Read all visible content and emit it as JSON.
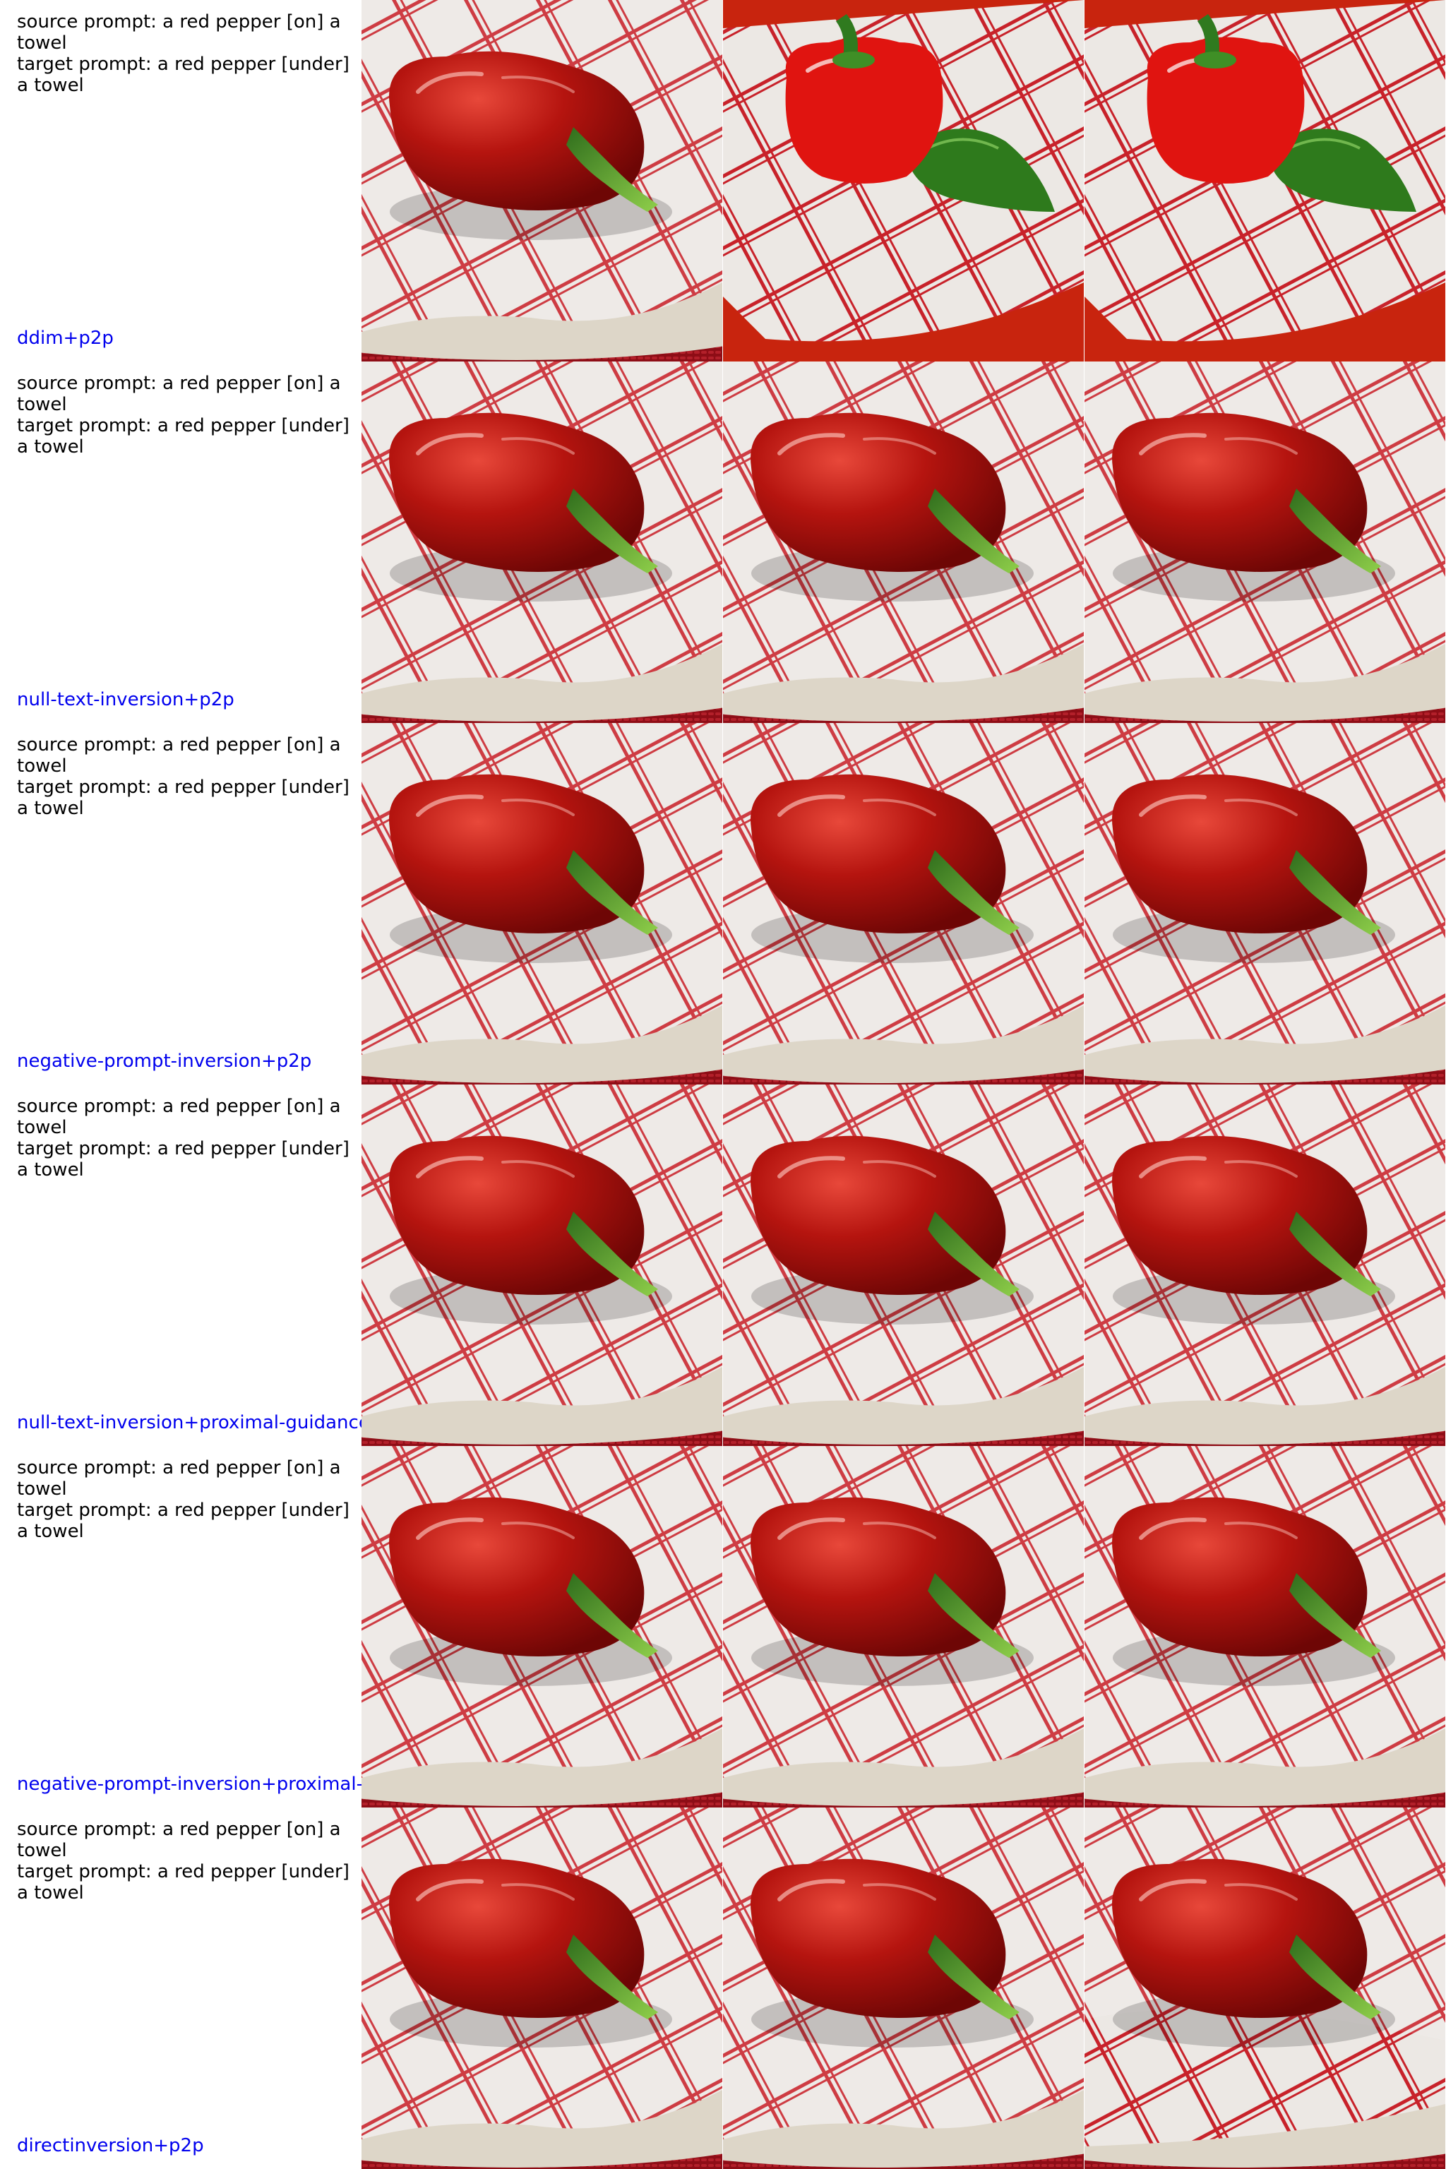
{
  "colors": {
    "method_label": "#0000ee",
    "prompt_text": "#000000",
    "pepper_red": "#b5140f",
    "pepper_dark": "#6e0605",
    "stem_green": "#3f8f26",
    "towel_white": "#ece8e4",
    "towel_stripe": "#c8222a",
    "tablecloth": "#8e0d16",
    "plate": "#ddd6c8",
    "bg_red": "#c8240e"
  },
  "columns": [
    "source-image",
    "reconstructed-image",
    "edited-image"
  ],
  "rows": [
    {
      "method": "ddim+p2p",
      "source_prompt": "source prompt: a red pepper [on] a towel",
      "target_prompt": "target prompt: a red pepper [under] a towel",
      "images": [
        "pepper-on-towel",
        "bell-pepper-with-green-chili-on-towel",
        "bell-pepper-with-green-chili-on-towel"
      ]
    },
    {
      "method": "null-text-inversion+p2p",
      "source_prompt": "source prompt: a red pepper [on] a towel",
      "target_prompt": "target prompt: a red pepper [under] a towel",
      "images": [
        "pepper-on-towel",
        "pepper-on-towel",
        "pepper-on-towel"
      ]
    },
    {
      "method": "negative-prompt-inversion+p2p",
      "source_prompt": "source prompt: a red pepper [on] a towel",
      "target_prompt": "target prompt: a red pepper [under] a towel",
      "images": [
        "pepper-on-towel",
        "pepper-on-towel",
        "pepper-on-towel"
      ]
    },
    {
      "method": "null-text-inversion+proximal-guidance",
      "source_prompt": "source prompt: a red pepper [on] a towel",
      "target_prompt": "target prompt: a red pepper [under] a towel",
      "images": [
        "pepper-on-towel",
        "pepper-on-towel",
        "pepper-on-towel"
      ]
    },
    {
      "method": "negative-prompt-inversion+proximal-guidance",
      "source_prompt": "source prompt: a red pepper [on] a towel",
      "target_prompt": "target prompt: a red pepper [under] a towel",
      "images": [
        "pepper-on-towel",
        "pepper-on-towel",
        "pepper-on-towel"
      ]
    },
    {
      "method": "directinversion+p2p",
      "source_prompt": "source prompt: a red pepper [on] a towel",
      "target_prompt": "target prompt: a red pepper [under] a towel",
      "images": [
        "pepper-on-towel",
        "pepper-on-towel",
        "pepper-under-towel-edge"
      ]
    }
  ]
}
